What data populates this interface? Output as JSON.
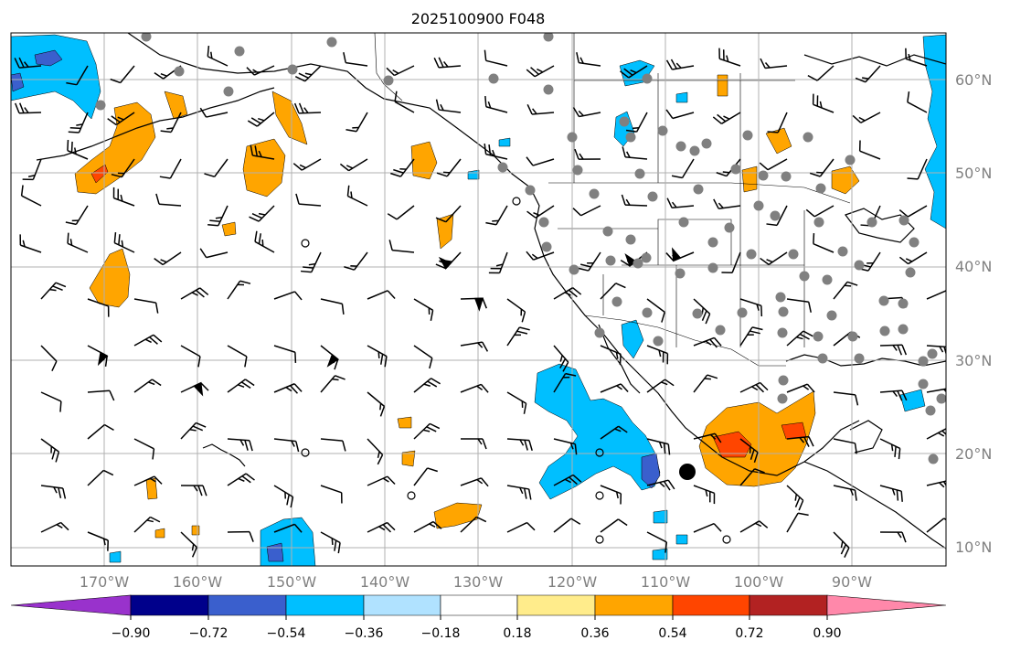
{
  "figure": {
    "title": "2025100900 F048"
  },
  "map": {
    "projection": "PlateCarree",
    "lon_range": [
      -180,
      -80
    ],
    "lat_range": [
      8,
      65
    ],
    "lat_labels": [
      "60°N",
      "50°N",
      "40°N",
      "30°N",
      "20°N",
      "10°N"
    ],
    "lon_labels": [
      "170°W",
      "160°W",
      "150°W",
      "140°W",
      "130°W",
      "120°W",
      "110°W",
      "100°W",
      "90°W"
    ],
    "gridlines": true,
    "label_color": "#808080",
    "coastline_color": "#000000",
    "station_marker_color": "#808080",
    "wind_barbs": true
  },
  "colorbar": {
    "orientation": "horizontal",
    "extend": "both",
    "ticks": [
      "−0.90",
      "−0.72",
      "−0.54",
      "−0.36",
      "−0.18",
      "0.18",
      "0.36",
      "0.54",
      "0.72",
      "0.90"
    ],
    "bins": [
      {
        "range": "< -0.90",
        "color": "#9932CC"
      },
      {
        "range": "-0.90 to -0.72",
        "color": "#00008B"
      },
      {
        "range": "-0.72 to -0.54",
        "color": "#3A5FCD"
      },
      {
        "range": "-0.54 to -0.36",
        "color": "#00BFFF"
      },
      {
        "range": "-0.36 to -0.18",
        "color": "#B0E2FF"
      },
      {
        "range": "-0.18 to 0.18",
        "color": "#FFFFFF"
      },
      {
        "range": "0.18 to 0.36",
        "color": "#FFEC8B"
      },
      {
        "range": "0.36 to 0.54",
        "color": "#FFA500"
      },
      {
        "range": "0.54 to 0.72",
        "color": "#FF4500"
      },
      {
        "range": "0.72 to 0.90",
        "color": "#B22222"
      },
      {
        "range": "> 0.90",
        "color": "#FF88AA"
      }
    ]
  },
  "fields": {
    "positive_color": "#FFA500",
    "positive_strong_color": "#FF4500",
    "negative_color": "#00BFFF",
    "negative_strong_color": "#3A5FCD"
  }
}
